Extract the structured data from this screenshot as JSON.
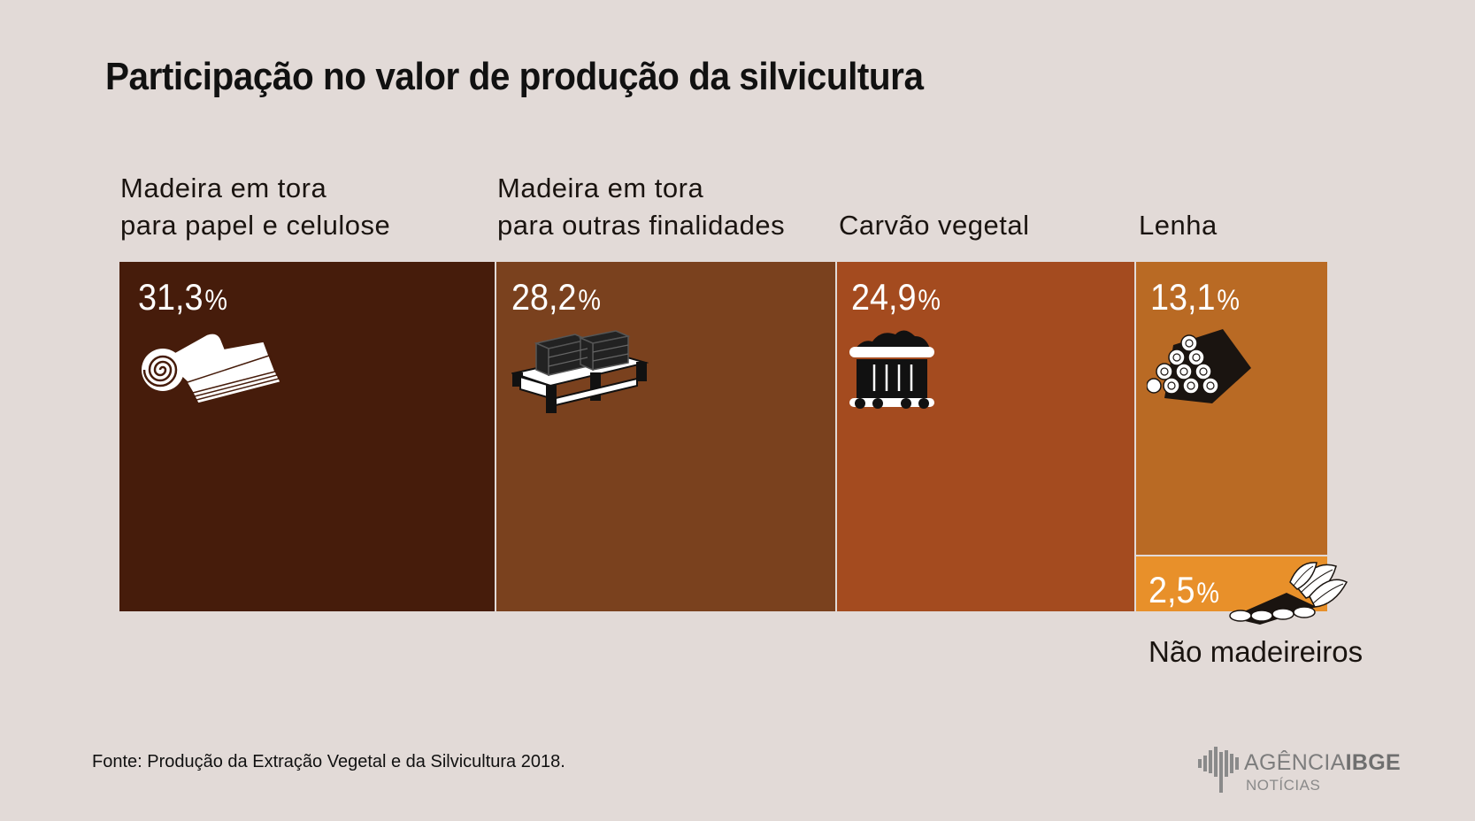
{
  "title": "Participação no valor de produção da silvicultura",
  "chart_data": {
    "type": "treemap",
    "unit": "%",
    "items": [
      {
        "label_lines": [
          "Madeira em tora",
          "para papel e celulose"
        ],
        "value": 31.3,
        "value_text": "31,3",
        "color": "#461c0b",
        "icon": "paper-roll-icon"
      },
      {
        "label_lines": [
          "Madeira em tora",
          "para outras finalidades"
        ],
        "value": 28.2,
        "value_text": "28,2",
        "color": "#7a411e",
        "icon": "lumber-pallet-icon"
      },
      {
        "label_lines": [
          "Carvão vegetal"
        ],
        "value": 24.9,
        "value_text": "24,9",
        "color": "#a44b1f",
        "icon": "coal-wagon-icon"
      },
      {
        "label_lines": [
          "Lenha"
        ],
        "value": 13.1,
        "value_text": "13,1",
        "color": "#b96a24",
        "icon": "firewood-stack-icon"
      },
      {
        "label_lines": [
          "Não madeireiros"
        ],
        "value": 2.5,
        "value_text": "2,5",
        "color": "#e8902a",
        "icon": "leaves-bark-icon"
      }
    ]
  },
  "source": "Fonte: Produção da Extração Vegetal e da Silvicultura 2018.",
  "logo": {
    "brand": "AGÊNCIA",
    "brand_bold": "IBGE",
    "sub": "NOTÍCIAS"
  }
}
